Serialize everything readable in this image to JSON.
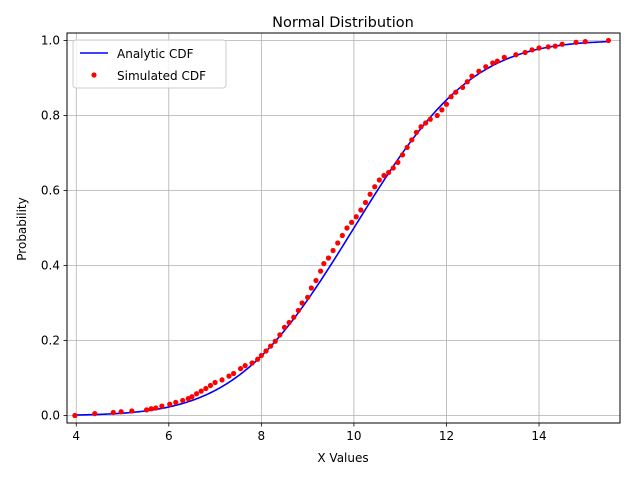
{
  "chart_data": {
    "type": "line",
    "title": "Normal Distribution",
    "xlabel": "X Values",
    "ylabel": "Probability",
    "xlim": [
      3.8,
      15.75
    ],
    "ylim": [
      -0.02,
      1.02
    ],
    "xticks": [
      4,
      6,
      8,
      10,
      12,
      14
    ],
    "yticks": [
      0.0,
      0.2,
      0.4,
      0.6,
      0.8,
      1.0
    ],
    "grid": true,
    "legend_position": "top-left",
    "distribution": {
      "mean": 10,
      "std": 2
    },
    "series": [
      {
        "name": "Analytic CDF",
        "style": "line",
        "color": "#0000ff",
        "x_range": [
          4.0,
          15.5
        ]
      },
      {
        "name": "Simulated CDF",
        "style": "points",
        "color": "#ff0000",
        "points": [
          [
            3.97,
            0.0
          ],
          [
            4.4,
            0.005
          ],
          [
            4.8,
            0.008
          ],
          [
            4.97,
            0.01
          ],
          [
            5.2,
            0.012
          ],
          [
            5.52,
            0.015
          ],
          [
            5.62,
            0.018
          ],
          [
            5.72,
            0.02
          ],
          [
            5.85,
            0.025
          ],
          [
            6.02,
            0.03
          ],
          [
            6.15,
            0.035
          ],
          [
            6.3,
            0.04
          ],
          [
            6.42,
            0.045
          ],
          [
            6.5,
            0.05
          ],
          [
            6.6,
            0.058
          ],
          [
            6.7,
            0.065
          ],
          [
            6.8,
            0.072
          ],
          [
            6.9,
            0.08
          ],
          [
            7.0,
            0.088
          ],
          [
            7.15,
            0.095
          ],
          [
            7.3,
            0.105
          ],
          [
            7.4,
            0.112
          ],
          [
            7.55,
            0.125
          ],
          [
            7.65,
            0.133
          ],
          [
            7.8,
            0.14
          ],
          [
            7.92,
            0.15
          ],
          [
            8.0,
            0.16
          ],
          [
            8.1,
            0.172
          ],
          [
            8.2,
            0.185
          ],
          [
            8.3,
            0.198
          ],
          [
            8.4,
            0.215
          ],
          [
            8.5,
            0.235
          ],
          [
            8.6,
            0.248
          ],
          [
            8.7,
            0.262
          ],
          [
            8.8,
            0.28
          ],
          [
            8.88,
            0.3
          ],
          [
            9.0,
            0.315
          ],
          [
            9.08,
            0.34
          ],
          [
            9.18,
            0.36
          ],
          [
            9.28,
            0.385
          ],
          [
            9.35,
            0.405
          ],
          [
            9.45,
            0.42
          ],
          [
            9.55,
            0.44
          ],
          [
            9.65,
            0.46
          ],
          [
            9.75,
            0.48
          ],
          [
            9.85,
            0.5
          ],
          [
            9.95,
            0.515
          ],
          [
            10.05,
            0.53
          ],
          [
            10.15,
            0.548
          ],
          [
            10.25,
            0.568
          ],
          [
            10.35,
            0.59
          ],
          [
            10.45,
            0.61
          ],
          [
            10.55,
            0.628
          ],
          [
            10.65,
            0.64
          ],
          [
            10.75,
            0.648
          ],
          [
            10.85,
            0.66
          ],
          [
            10.95,
            0.675
          ],
          [
            11.05,
            0.695
          ],
          [
            11.15,
            0.715
          ],
          [
            11.25,
            0.735
          ],
          [
            11.35,
            0.755
          ],
          [
            11.45,
            0.77
          ],
          [
            11.55,
            0.78
          ],
          [
            11.65,
            0.79
          ],
          [
            11.8,
            0.8
          ],
          [
            11.9,
            0.815
          ],
          [
            12.0,
            0.83
          ],
          [
            12.1,
            0.85
          ],
          [
            12.2,
            0.862
          ],
          [
            12.35,
            0.875
          ],
          [
            12.45,
            0.89
          ],
          [
            12.55,
            0.905
          ],
          [
            12.7,
            0.918
          ],
          [
            12.85,
            0.93
          ],
          [
            13.0,
            0.94
          ],
          [
            13.1,
            0.945
          ],
          [
            13.25,
            0.955
          ],
          [
            13.5,
            0.962
          ],
          [
            13.7,
            0.968
          ],
          [
            13.85,
            0.975
          ],
          [
            14.0,
            0.98
          ],
          [
            14.2,
            0.983
          ],
          [
            14.35,
            0.985
          ],
          [
            14.5,
            0.99
          ],
          [
            14.8,
            0.995
          ],
          [
            15.0,
            0.997
          ],
          [
            15.5,
            1.0
          ]
        ]
      }
    ]
  }
}
